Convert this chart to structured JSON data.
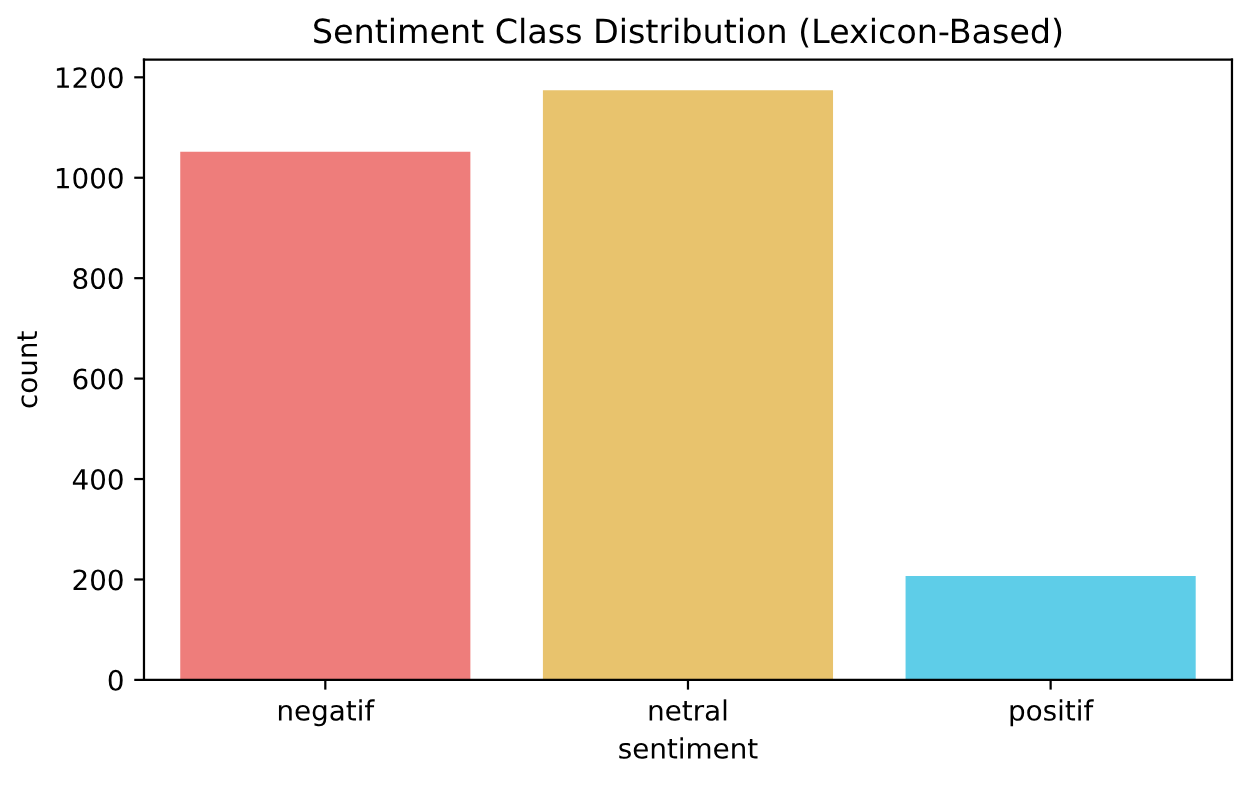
{
  "chart_data": {
    "type": "bar",
    "title": "Sentiment Class Distribution (Lexicon-Based)",
    "xlabel": "sentiment",
    "ylabel": "count",
    "categories": [
      "negatif",
      "netral",
      "positif"
    ],
    "values": [
      1052,
      1174,
      207
    ],
    "colors": [
      "#ee7d7b",
      "#e8c36d",
      "#5ecde8"
    ],
    "ylim": [
      0,
      1235
    ],
    "yticks": [
      0,
      200,
      400,
      600,
      800,
      1000,
      1200
    ],
    "grid": false,
    "legend": false
  }
}
